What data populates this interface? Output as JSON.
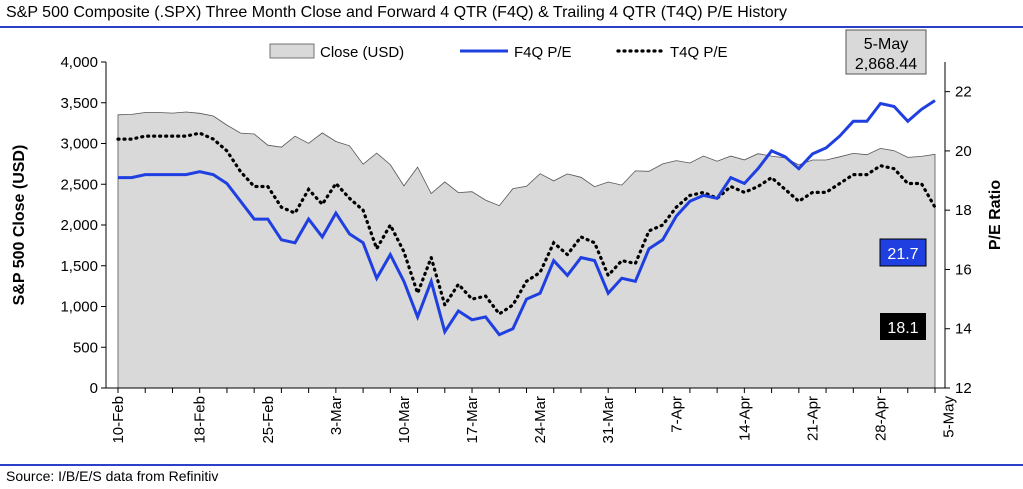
{
  "title": "S&P 500 Composite (.SPX) Three Month Close and Forward 4 QTR (F4Q) & Trailing 4 QTR (T4Q) P/E History",
  "source": "Source: I/B/E/S data from Refinitiv",
  "colors": {
    "close_fill": "#d9d9d9",
    "f4q": "#1f3fe0",
    "t4q": "#000000",
    "rule": "#2b3fc8",
    "f4q_badge": "#1f3fe0",
    "t4q_badge": "#000000"
  },
  "chart_data": {
    "type": "area",
    "ylabel": "S&P 500 Close (USD)",
    "y2label": "P/E Ratio",
    "ylim": [
      0,
      4000
    ],
    "y2lim": [
      12,
      23
    ],
    "yticks": [
      "0",
      "500",
      "1,000",
      "1,500",
      "2,000",
      "2,500",
      "3,000",
      "3,500",
      "4,000"
    ],
    "y2ticks": [
      "12",
      "14",
      "16",
      "18",
      "20",
      "22"
    ],
    "xticks": [
      "10-Feb",
      "18-Feb",
      "25-Feb",
      "3-Mar",
      "10-Mar",
      "17-Mar",
      "24-Mar",
      "31-Mar",
      "7-Apr",
      "14-Apr",
      "21-Apr",
      "28-Apr",
      "5-May"
    ],
    "xtick_positions": [
      0,
      6,
      11,
      16,
      21,
      26,
      31,
      36,
      41,
      46,
      51,
      56,
      61
    ],
    "legend": [
      "Close (USD)",
      "F4Q P/E",
      "T4Q P/E"
    ],
    "series": [
      {
        "name": "Close (USD)",
        "axis": "left",
        "values": [
          3352,
          3357,
          3380,
          3380,
          3373,
          3386,
          3370,
          3337,
          3226,
          3128,
          3116,
          2979,
          2954,
          3090,
          3003,
          3130,
          3024,
          2972,
          2746,
          2882,
          2741,
          2480,
          2711,
          2386,
          2529,
          2398,
          2409,
          2305,
          2237,
          2447,
          2475,
          2630,
          2541,
          2627,
          2585,
          2470,
          2527,
          2489,
          2664,
          2659,
          2750,
          2790,
          2761,
          2847,
          2783,
          2846,
          2799,
          2875,
          2846,
          2823,
          2737,
          2798,
          2797,
          2837,
          2879,
          2863,
          2940,
          2912,
          2830,
          2842,
          2868
        ]
      },
      {
        "name": "F4Q P/E",
        "axis": "right",
        "values": [
          19.1,
          19.1,
          19.2,
          19.2,
          19.2,
          19.2,
          19.3,
          19.2,
          18.9,
          18.3,
          17.7,
          17.7,
          17.0,
          16.9,
          17.7,
          17.1,
          17.9,
          17.2,
          16.9,
          15.7,
          16.5,
          15.6,
          14.4,
          15.6,
          13.9,
          14.6,
          14.3,
          14.4,
          13.8,
          14.0,
          15.0,
          15.2,
          16.3,
          15.8,
          16.4,
          16.3,
          15.2,
          15.7,
          15.6,
          16.7,
          17.0,
          17.8,
          18.3,
          18.5,
          18.4,
          19.1,
          18.9,
          19.4,
          20.0,
          19.8,
          19.4,
          19.9,
          20.1,
          20.5,
          21.0,
          21.0,
          21.6,
          21.5,
          21.0,
          21.4,
          21.7
        ]
      },
      {
        "name": "T4Q P/E",
        "axis": "right",
        "values": [
          20.4,
          20.4,
          20.5,
          20.5,
          20.5,
          20.5,
          20.6,
          20.4,
          20.0,
          19.3,
          18.8,
          18.8,
          18.1,
          17.9,
          18.7,
          18.2,
          18.9,
          18.4,
          18.0,
          16.7,
          17.5,
          16.6,
          15.2,
          16.4,
          14.8,
          15.5,
          15.0,
          15.1,
          14.5,
          14.8,
          15.6,
          15.9,
          16.9,
          16.5,
          17.1,
          16.9,
          15.8,
          16.3,
          16.2,
          17.3,
          17.5,
          18.1,
          18.5,
          18.6,
          18.4,
          18.8,
          18.6,
          18.8,
          19.1,
          18.7,
          18.3,
          18.6,
          18.6,
          18.9,
          19.2,
          19.2,
          19.5,
          19.4,
          18.9,
          18.9,
          18.1
        ]
      }
    ],
    "annotation": {
      "date": "5-May",
      "value": "2,868.44"
    },
    "badges": {
      "f4q": "21.7",
      "t4q": "18.1"
    }
  }
}
